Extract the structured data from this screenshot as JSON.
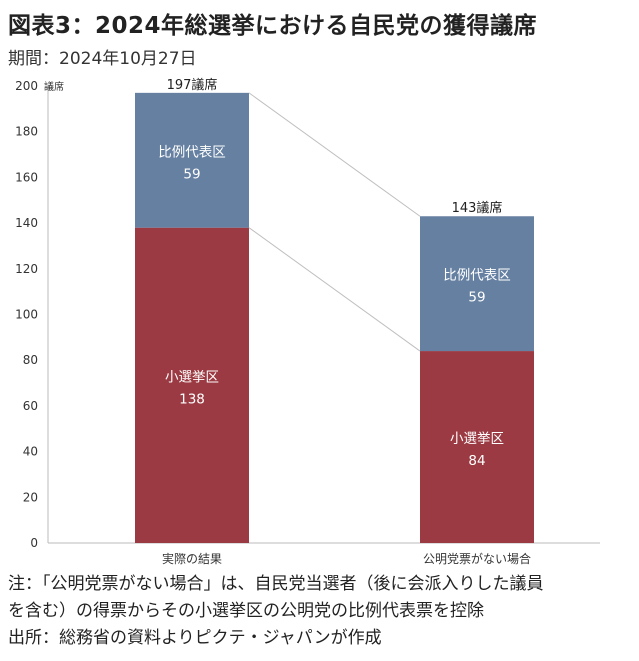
{
  "title": "図表3：2024年総選挙における自民党の獲得議席",
  "period": "期間：2024年10月27日",
  "chart_data": {
    "type": "bar",
    "stacked": true,
    "categories": [
      "実際の結果",
      "公明党票がない場合"
    ],
    "series": [
      {
        "name": "小選挙区",
        "values": [
          138,
          84
        ],
        "color": "#9b3a42"
      },
      {
        "name": "比例代表区",
        "values": [
          59,
          59
        ],
        "color": "#6680a2"
      }
    ],
    "totals": [
      197,
      143
    ],
    "total_suffix": "議席",
    "ylabel": "議席",
    "ylim": [
      0,
      200
    ],
    "yticks": [
      0,
      20,
      40,
      60,
      80,
      100,
      120,
      140,
      160,
      180,
      200
    ],
    "connector_lines": true
  },
  "notes": [
    "注：「公明党票がない場合」は、自民党当選者（後に会派入りした議員",
    "を含む）の得票からその小選挙区の公明党の比例代表票を控除",
    "出所：総務省の資料よりピクテ・ジャパンが作成"
  ]
}
